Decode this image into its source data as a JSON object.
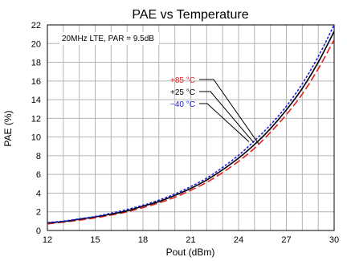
{
  "chart_data": {
    "type": "line",
    "title": "PAE vs Temperature",
    "xlabel": "Pout (dBm)",
    "ylabel": "PAE (%)",
    "annotation": "20MHz LTE, PAR = 9.5dB",
    "xlim": [
      12,
      30
    ],
    "ylim": [
      0,
      22
    ],
    "xticks": [
      12,
      15,
      18,
      21,
      24,
      27,
      30
    ],
    "yticks": [
      0,
      2,
      4,
      6,
      8,
      10,
      12,
      14,
      16,
      18,
      20,
      22
    ],
    "grid": true,
    "x": [
      12,
      13,
      14,
      15,
      16,
      17,
      18,
      19,
      20,
      21,
      22,
      23,
      24,
      25,
      26,
      27,
      28,
      29,
      30
    ],
    "series": [
      {
        "name": "+85 °C",
        "color": "#e02020",
        "dash": "dashed",
        "values": [
          0.7,
          0.9,
          1.1,
          1.35,
          1.65,
          2.0,
          2.45,
          2.95,
          3.55,
          4.3,
          5.15,
          6.2,
          7.4,
          8.8,
          10.5,
          12.4,
          14.6,
          17.3,
          20.4
        ]
      },
      {
        "name": "+25 °C",
        "color": "#000000",
        "dash": "solid",
        "values": [
          0.8,
          0.95,
          1.2,
          1.45,
          1.75,
          2.1,
          2.6,
          3.1,
          3.75,
          4.5,
          5.4,
          6.5,
          7.75,
          9.2,
          10.9,
          12.9,
          15.2,
          18.0,
          21.3
        ]
      },
      {
        "name": "−40 °C",
        "color": "#2020e0",
        "dash": "dotted",
        "values": [
          0.85,
          1.0,
          1.25,
          1.5,
          1.85,
          2.25,
          2.7,
          3.25,
          3.9,
          4.7,
          5.6,
          6.75,
          8.05,
          9.6,
          11.3,
          13.3,
          15.7,
          18.6,
          22.0
        ]
      }
    ],
    "legend": {
      "placement": "inside-center",
      "entries": [
        {
          "label": "+85 °C",
          "color": "#e02020"
        },
        {
          "label": "+25 °C",
          "color": "#000000"
        },
        {
          "label": "−40 °C",
          "color": "#2020e0"
        }
      ]
    }
  }
}
